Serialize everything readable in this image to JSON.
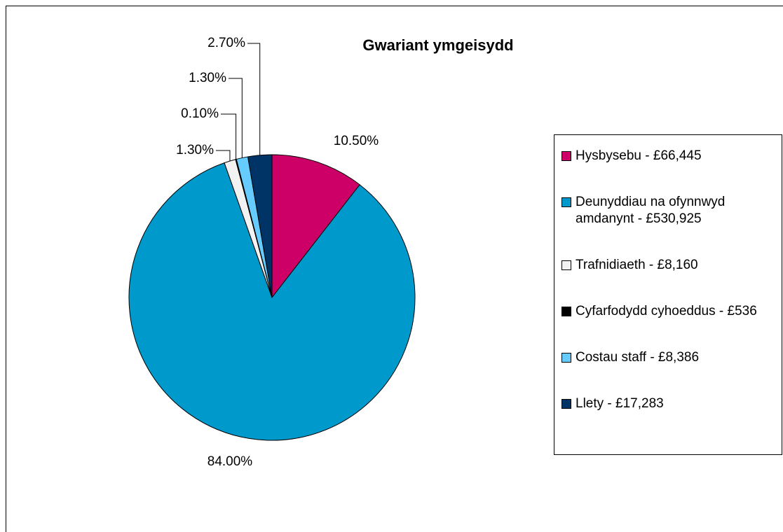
{
  "chart_data": {
    "type": "pie",
    "title": "Gwariant ymgeisydd",
    "categories": [
      "Hysbysebu - £66,445",
      "Deunyddiau na ofynnwyd amdanynt - £530,925",
      "Trafnidiaeth - £8,160",
      "Cyfarfodydd cyhoeddus - £536",
      "Costau staff - £8,386",
      "Llety - £17,283"
    ],
    "values": [
      10.5,
      84,
      1.3,
      0.1,
      1.3,
      2.7
    ],
    "value_labels": [
      "10.50%",
      "84.00%",
      "1.30%",
      "0.10%",
      "1.30%",
      "2.70%"
    ],
    "colors": [
      "#cc0066",
      "#0099cc",
      "#f2f2f2",
      "#000000",
      "#66ccff",
      "#003366"
    ],
    "legend": "right"
  }
}
